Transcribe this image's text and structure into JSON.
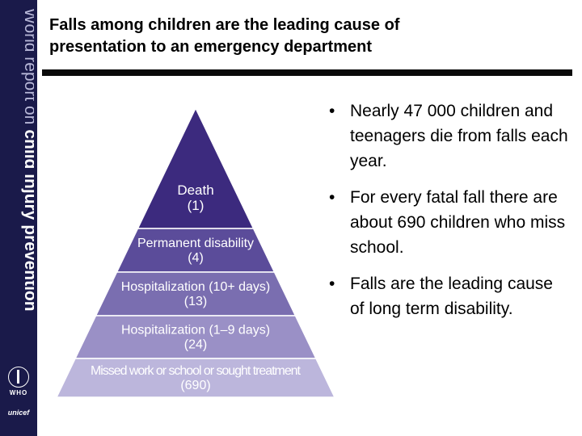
{
  "sidebar": {
    "series_light": "World report on",
    "series_bold": "child injury prevention",
    "logo_who": "WHO",
    "logo_unicef": "unicef"
  },
  "slide": {
    "title_line1": "Falls among children are the leading cause of",
    "title_line2": "presentation to an emergency department"
  },
  "pyramid": {
    "levels": [
      {
        "label": "Death",
        "count": "(1)"
      },
      {
        "label": "Permanent disability",
        "count": "(4)"
      },
      {
        "label": "Hospitalization (10+ days)",
        "count": "(13)"
      },
      {
        "label": "Hospitalization (1–9 days)",
        "count": "(24)"
      },
      {
        "label": "Missed work or school or sought treatment",
        "count": "(690)"
      }
    ],
    "colors": [
      "#3c2a7e",
      "#5b4c9a",
      "#7a6eb0",
      "#9a90c6",
      "#bcb6dc"
    ]
  },
  "bullets": [
    {
      "mark": "•",
      "text": "Nearly 47 000 children and teenagers die from falls each year."
    },
    {
      "mark": "•",
      "text": "For every fatal fall there are about 690 children who miss school."
    },
    {
      "mark": "•",
      "text": "Falls are the leading cause of long term disability."
    }
  ],
  "colors": {
    "sidebar_bg": "#1a1a4a",
    "sidebar_text_light": "#b8b8d8",
    "sidebar_text_bold": "#ffffff",
    "rule": "#0a0a0a"
  }
}
